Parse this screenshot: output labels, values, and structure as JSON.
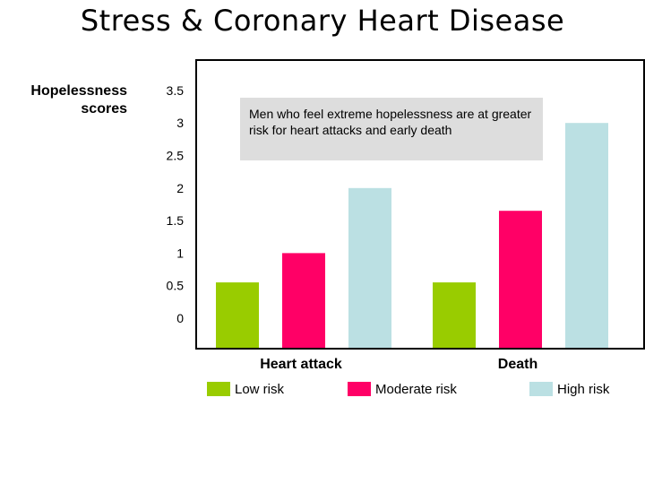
{
  "slide": {
    "title": "Stress & Coronary Heart Disease",
    "annotation": "Men who feel extreme hopelessness are at greater risk for heart attacks and early death"
  },
  "chart_data": {
    "type": "bar",
    "title": "",
    "ylabel": "Hopelessness scores",
    "xlabel": "",
    "ylim": [
      0,
      3.5
    ],
    "yticks": [
      "3.5",
      "3",
      "2.5",
      "2",
      "1.5",
      "1",
      "0.5",
      "0"
    ],
    "grid": false,
    "legend": "bottom",
    "categories": [
      "Heart attack",
      "Death"
    ],
    "series": [
      {
        "name": "Low risk",
        "color": "#99cc00",
        "values": [
          0.55,
          0.55
        ]
      },
      {
        "name": "Moderate risk",
        "color": "#ff0066",
        "values": [
          1.0,
          1.65
        ]
      },
      {
        "name": "High risk",
        "color": "#bbe0e3",
        "values": [
          2.0,
          3.0
        ]
      }
    ]
  }
}
